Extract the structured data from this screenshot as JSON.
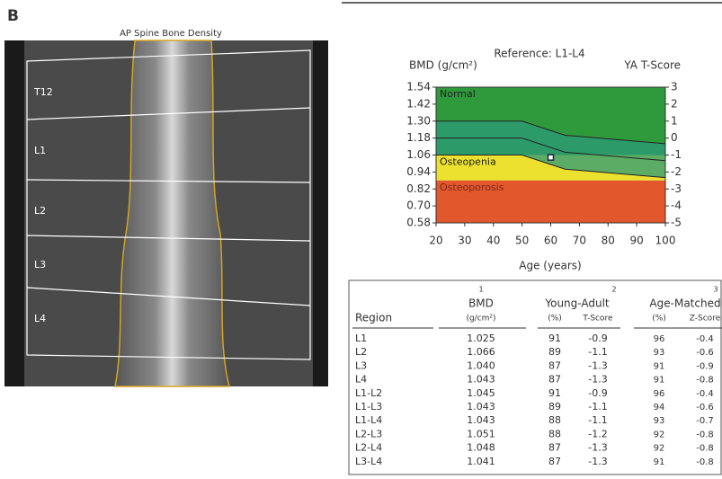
{
  "panel_label": "B",
  "image": {
    "title": "AP Spine Bone Density",
    "vertebrae": [
      "T12",
      "L1",
      "L2",
      "L3",
      "L4"
    ]
  },
  "chart_data": {
    "type": "reference-curve",
    "title": "Reference: L1-L4",
    "y_label": "BMD (g/cm²)",
    "y2_label": "YA T-Score",
    "x_label": "Age (years)",
    "xlim": [
      20,
      100
    ],
    "xticks": [
      20,
      30,
      40,
      50,
      60,
      70,
      80,
      90,
      100
    ],
    "ylim": [
      0.58,
      1.54
    ],
    "yticks": [
      0.58,
      {
        "value": 0.7,
        "label": "0.70"
      },
      0.82,
      0.94,
      1.06,
      1.18,
      {
        "value": 1.3,
        "label": "1.30"
      },
      1.42,
      1.54
    ],
    "y2lim": [
      -5,
      3
    ],
    "y2ticks": [
      -5,
      -4,
      -3,
      -2,
      -1,
      0,
      1,
      2,
      3
    ],
    "zones": [
      {
        "label": "Normal",
        "from": -1,
        "to": 3,
        "color": "#2f9a3c"
      },
      {
        "label": "Osteopenia",
        "from": -2.5,
        "to": -1,
        "color": "#ece12e"
      },
      {
        "label": "Osteoporosis",
        "from": -5,
        "to": -2.5,
        "color": "#e2572b"
      }
    ],
    "reference": {
      "x": [
        20,
        50,
        65,
        100
      ],
      "upper": [
        1.3,
        1.3,
        1.2,
        1.14
      ],
      "mean": [
        1.18,
        1.18,
        1.08,
        1.02
      ],
      "lower": [
        1.06,
        1.06,
        0.96,
        0.9
      ],
      "color": "#2c9a78"
    },
    "patient": {
      "x": 60,
      "value": 1.043
    }
  },
  "table": {
    "header": {
      "region": "Region",
      "bmd": {
        "note": "1",
        "title": "BMD",
        "unit": "(g/cm²)"
      },
      "young_adult": {
        "note": "2",
        "title": "Young-Adult",
        "pct": "(%)",
        "score": "T-Score"
      },
      "age_matched": {
        "note": "3",
        "title": "Age-Matched",
        "pct": "(%)",
        "score": "Z-Score"
      }
    },
    "rows": [
      [
        "L1",
        "1.025",
        "91",
        "-0.9",
        "96",
        "-0.4"
      ],
      [
        "L2",
        "1.066",
        "89",
        "-1.1",
        "93",
        "-0.6"
      ],
      [
        "L3",
        "1.040",
        "87",
        "-1.3",
        "91",
        "-0.9"
      ],
      [
        "L4",
        "1.043",
        "87",
        "-1.3",
        "91",
        "-0.8"
      ],
      [
        "L1-L2",
        "1.045",
        "91",
        "-0.9",
        "96",
        "-0.4"
      ],
      [
        "L1-L3",
        "1.043",
        "89",
        "-1.1",
        "94",
        "-0.6"
      ],
      [
        "L1-L4",
        "1.043",
        "88",
        "-1.1",
        "93",
        "-0.7"
      ],
      [
        "L2-L3",
        "1.051",
        "88",
        "-1.2",
        "92",
        "-0.8"
      ],
      [
        "L2-L4",
        "1.048",
        "87",
        "-1.3",
        "92",
        "-0.8"
      ],
      [
        "L3-L4",
        "1.041",
        "87",
        "-1.3",
        "91",
        "-0.8"
      ]
    ]
  }
}
